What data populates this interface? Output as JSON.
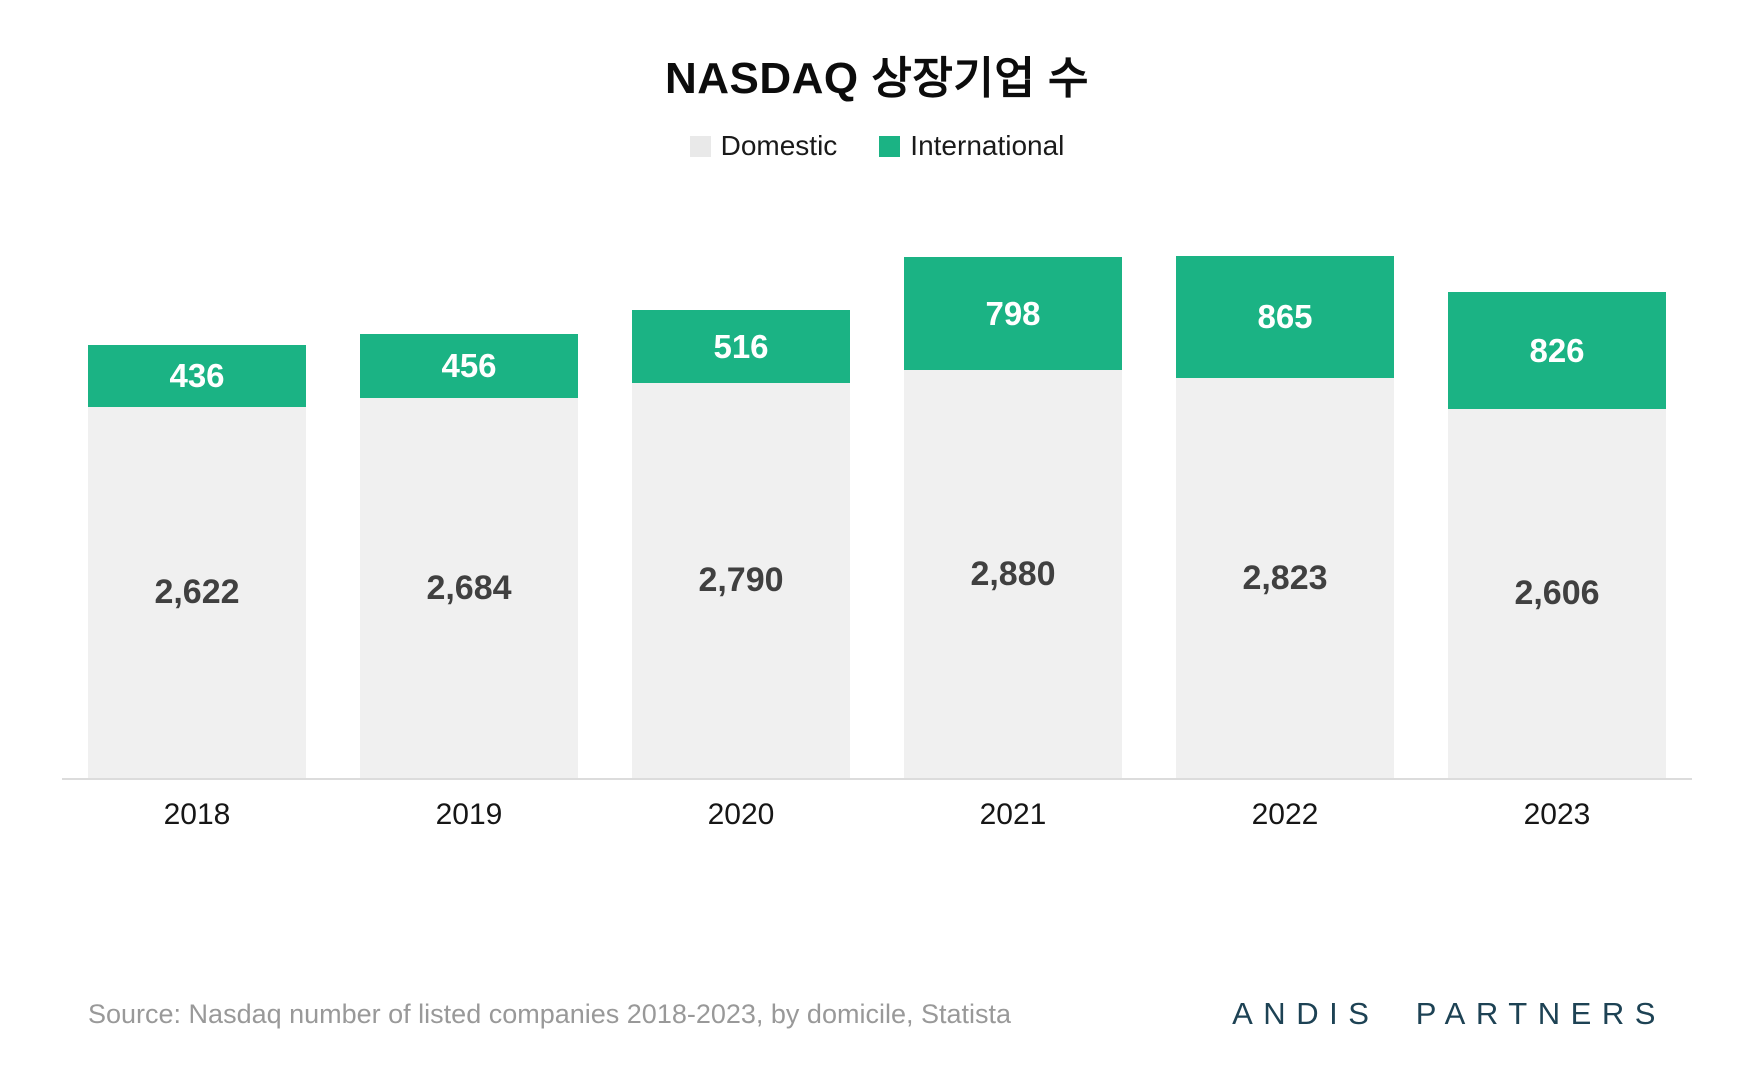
{
  "title": "NASDAQ 상장기업 수",
  "source": "Source: Nasdaq number of listed companies 2018-2023, by domicile, Statista",
  "brand": "ANDIS PARTNERS",
  "colors": {
    "domestic_fill": "#f0f0f0",
    "domestic_swatch": "#e9e9e9",
    "international_fill": "#1bb384",
    "domestic_label": "#404040",
    "international_label": "#ffffff",
    "axis_line": "#dcdcdc",
    "x_label": "#161616",
    "source_text": "#999999",
    "brand_text": "#1d4254"
  },
  "chart_data": {
    "type": "bar",
    "stacked": true,
    "title": "NASDAQ 상장기업 수",
    "categories": [
      "2018",
      "2019",
      "2020",
      "2021",
      "2022",
      "2023"
    ],
    "series": [
      {
        "name": "Domestic",
        "color": "#f0f0f0",
        "label_color": "#404040",
        "values": [
          2622,
          2684,
          2790,
          2880,
          2823,
          2606
        ]
      },
      {
        "name": "International",
        "color": "#1bb384",
        "label_color": "#ffffff",
        "values": [
          436,
          456,
          516,
          798,
          865,
          826
        ]
      }
    ],
    "totals": [
      3058,
      3140,
      3306,
      3678,
      3688,
      3432
    ],
    "xlabel": "",
    "ylabel": "",
    "ylim": [
      0,
      3900
    ],
    "grid": false,
    "legend_position": "top",
    "value_labels": "inside-segments"
  }
}
